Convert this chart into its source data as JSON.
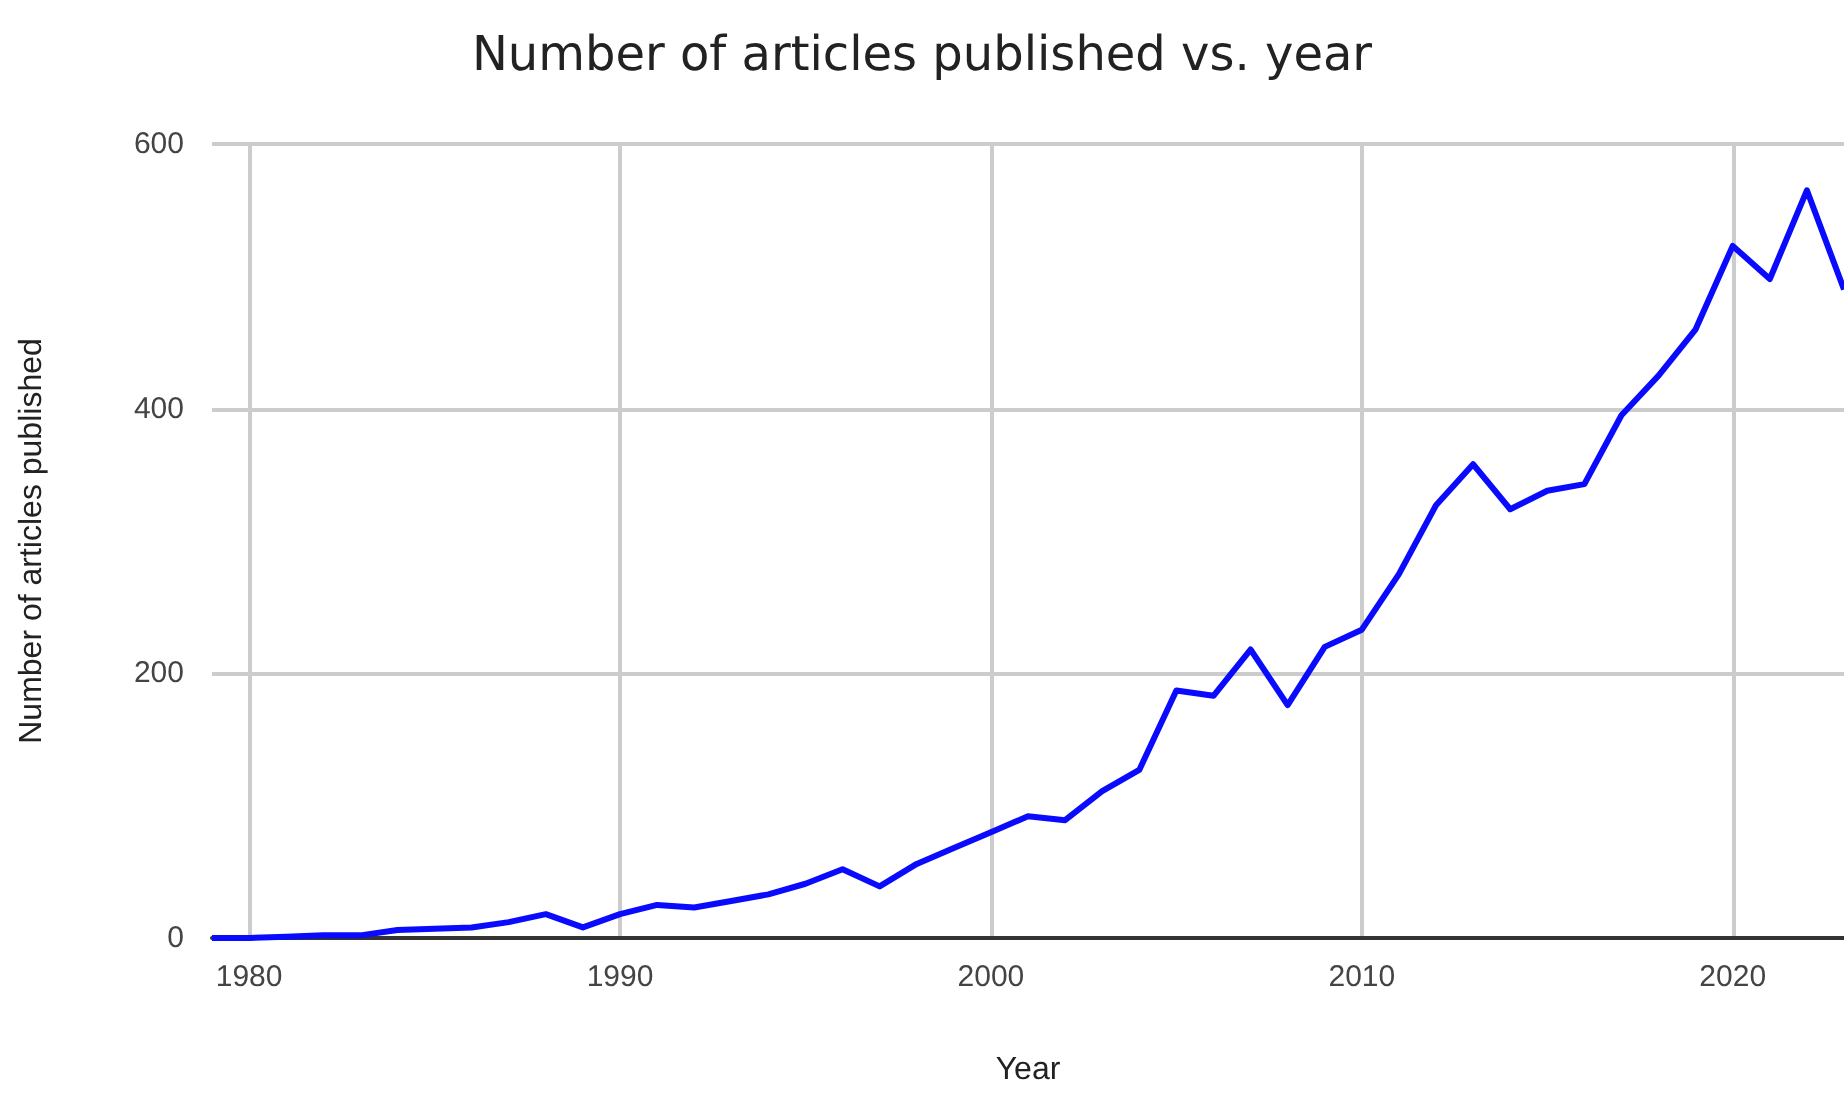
{
  "chart_data": {
    "type": "line",
    "title": "Number of articles published vs. year",
    "xlabel": "Year",
    "ylabel": "Number of articles published",
    "x": [
      1979,
      1980,
      1981,
      1982,
      1983,
      1984,
      1985,
      1986,
      1987,
      1988,
      1989,
      1990,
      1991,
      1992,
      1993,
      1994,
      1995,
      1996,
      1997,
      1998,
      1999,
      2000,
      2001,
      2002,
      2003,
      2004,
      2005,
      2006,
      2007,
      2008,
      2009,
      2010,
      2011,
      2012,
      2013,
      2014,
      2015,
      2016,
      2017,
      2018,
      2019,
      2020,
      2021,
      2022,
      2023
    ],
    "series": [
      {
        "color": "#0a0aff",
        "values": [
          0,
          0,
          1,
          2,
          2,
          6,
          7,
          8,
          12,
          18,
          8,
          18,
          25,
          23,
          28,
          33,
          41,
          52,
          39,
          56,
          68,
          80,
          92,
          89,
          111,
          127,
          187,
          183,
          218,
          176,
          220,
          233,
          275,
          327,
          358,
          324,
          338,
          343,
          395,
          425,
          460,
          523,
          498,
          565,
          490
        ]
      }
    ],
    "xlim": [
      1979,
      2023
    ],
    "xticks": [
      1980,
      1990,
      2000,
      2010,
      2020
    ],
    "ylim": [
      0,
      600
    ],
    "yticks": [
      0,
      200,
      400,
      600
    ],
    "grid": true,
    "marker": "none",
    "line_style": "solid"
  }
}
